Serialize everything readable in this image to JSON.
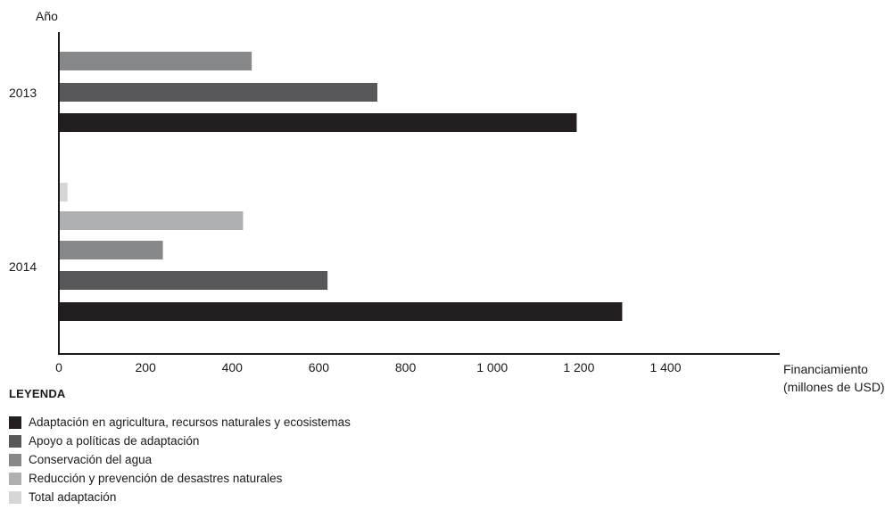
{
  "chart_data": {
    "type": "bar",
    "orientation": "horizontal",
    "ylabel": "Año",
    "xlabel_line1": "Financiamiento",
    "xlabel_line2": "(millones de USD)",
    "xlim": [
      0,
      1800
    ],
    "xticks": [
      {
        "value": 0,
        "label": "0"
      },
      {
        "value": 200,
        "label": "200"
      },
      {
        "value": 400,
        "label": "400"
      },
      {
        "value": 600,
        "label": "600"
      },
      {
        "value": 800,
        "label": "800"
      },
      {
        "value": 1000,
        "label": "1 000"
      },
      {
        "value": 1200,
        "label": "1 200"
      },
      {
        "value": 1400,
        "label": "1 400"
      }
    ],
    "categories": [
      "2013",
      "2014"
    ],
    "legend_title": "LEYENDA",
    "series": [
      {
        "name": "Adaptación en agricultura, recursos naturales y ecosistemas",
        "color": "#231f20",
        "values": [
          1195,
          1300
        ]
      },
      {
        "name": "Apoyo a políticas de adaptación",
        "color": "#58585a",
        "values": [
          735,
          620
        ]
      },
      {
        "name": "Conservación del agua",
        "color": "#87888a",
        "values": [
          445,
          240
        ]
      },
      {
        "name": "Reducción y prevención de desastres naturales",
        "color": "#aeafb1",
        "values": [
          null,
          425
        ]
      },
      {
        "name": "Total adaptación",
        "color": "#d5d6d8",
        "values": [
          null,
          20
        ]
      }
    ]
  }
}
